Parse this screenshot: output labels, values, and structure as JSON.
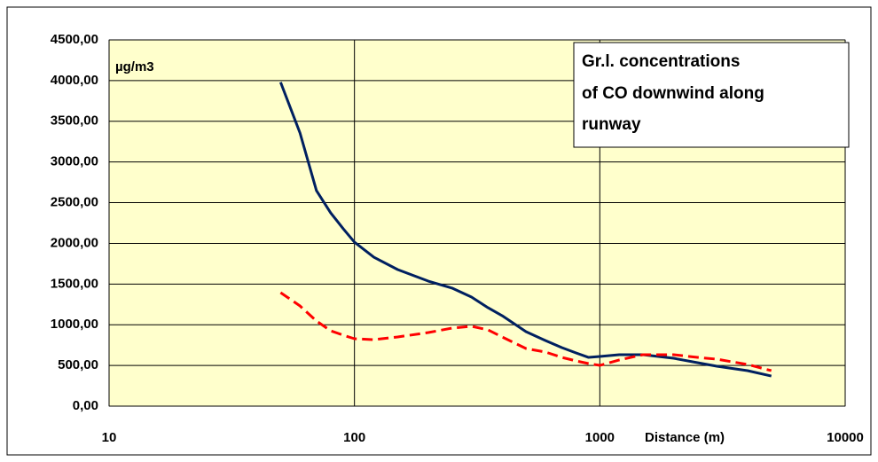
{
  "chart_data": {
    "type": "line",
    "title": [
      "Gr.l. concentrations",
      "of CO downwind along",
      "runway"
    ],
    "y_label": "µg/m3",
    "x_label": "Distance (m)",
    "x": [
      50,
      60,
      70,
      80,
      90,
      100,
      120,
      150,
      200,
      250,
      300,
      350,
      400,
      500,
      600,
      700,
      800,
      900,
      1000,
      1200,
      1500,
      2000,
      2500,
      3000,
      4000,
      5000
    ],
    "series": [
      {
        "color": "#002060",
        "dash": false,
        "values": [
          3980,
          3356,
          2648,
          2375,
          2180,
          2015,
          1830,
          1678,
          1536,
          1450,
          1340,
          1210,
          1111,
          915,
          806,
          719,
          654,
          599,
          610,
          632,
          632,
          588,
          534,
          490,
          436,
          370
        ]
      },
      {
        "color": "#ff0000",
        "dash": true,
        "values": [
          1395,
          1231,
          1046,
          926,
          872,
          828,
          817,
          850,
          904,
          959,
          981,
          937,
          850,
          708,
          665,
          599,
          556,
          523,
          501,
          567,
          632,
          632,
          599,
          577,
          512,
          436
        ]
      }
    ],
    "xlog": true,
    "xlim": [
      10,
      10000
    ],
    "xticks": [
      10,
      100,
      1000,
      10000
    ],
    "ylim": [
      0,
      4500
    ],
    "yticks": [
      {
        "value": 0,
        "label": "0,00"
      },
      {
        "value": 500,
        "label": "500,00"
      },
      {
        "value": 1000,
        "label": "1000,00"
      },
      {
        "value": 1500,
        "label": "1500,00"
      },
      {
        "value": 2000,
        "label": "2000,00"
      },
      {
        "value": 2500,
        "label": "2500,00"
      },
      {
        "value": 3000,
        "label": "3000,00"
      },
      {
        "value": 3500,
        "label": "3500,00"
      },
      {
        "value": 4000,
        "label": "4000,00"
      },
      {
        "value": 4500,
        "label": "4500,00"
      }
    ],
    "grid": true,
    "background": "#ffffcc"
  }
}
